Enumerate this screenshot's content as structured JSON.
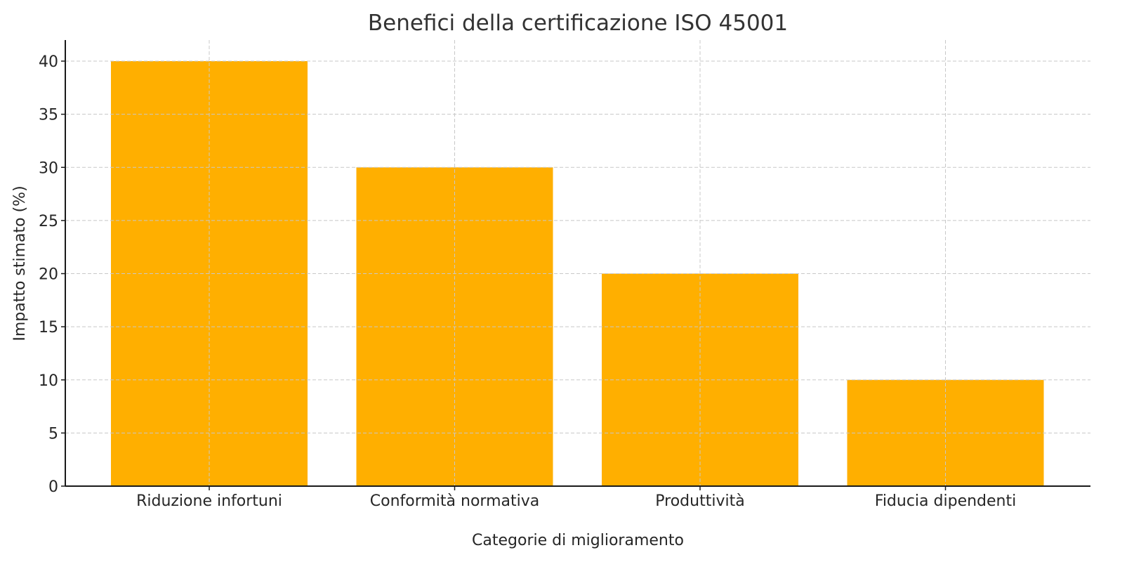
{
  "chart_data": {
    "type": "bar",
    "title": "Benefici della certificazione ISO 45001",
    "xlabel": "Categorie di miglioramento",
    "ylabel": "Impatto stimato (%)",
    "categories": [
      "Riduzione infortuni",
      "Conformità normativa",
      "Produttività",
      "Fiducia dipendenti"
    ],
    "values": [
      40,
      30,
      20,
      10
    ],
    "ylim": [
      0,
      42
    ],
    "yticks": [
      0,
      5,
      10,
      15,
      20,
      25,
      30,
      35,
      40
    ],
    "grid": true,
    "legend": null,
    "bar_color": "#FFAF00",
    "grid_color": "#c8c8c8",
    "axis_color": "#1a1a1a"
  }
}
